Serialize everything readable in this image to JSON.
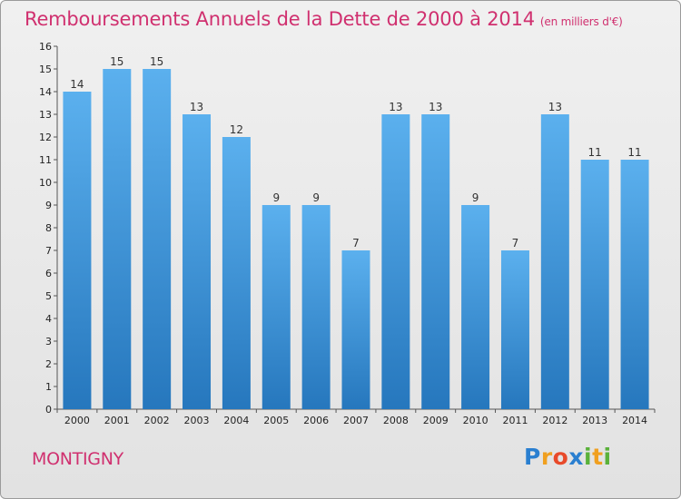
{
  "chart_data": {
    "type": "bar",
    "title": "Remboursements Annuels de la Dette de 2000 à 2014",
    "unit_note": "(en milliers d'€)",
    "categories": [
      "2000",
      "2001",
      "2002",
      "2003",
      "2004",
      "2005",
      "2006",
      "2007",
      "2008",
      "2009",
      "2010",
      "2011",
      "2012",
      "2013",
      "2014"
    ],
    "values": [
      14,
      15,
      15,
      13,
      12,
      9,
      9,
      7,
      13,
      13,
      9,
      7,
      13,
      11,
      11
    ],
    "ylim": [
      0,
      16
    ],
    "yticks": [
      0,
      1,
      2,
      3,
      4,
      5,
      6,
      7,
      8,
      9,
      10,
      11,
      12,
      13,
      14,
      15,
      16
    ],
    "xlabel": "",
    "ylabel": "",
    "grid": false,
    "bar_color": "#3a8fd6"
  },
  "commune": "MONTIGNY",
  "brand": {
    "letters": [
      "P",
      "r",
      "o",
      "x",
      "i",
      "t",
      "i"
    ],
    "colors": [
      "#2a7fd0",
      "#f0a020",
      "#e84a2a",
      "#2a7fd0",
      "#5ab13a",
      "#f0a020",
      "#5ab13a"
    ]
  },
  "colors": {
    "accent": "#d0306f"
  }
}
